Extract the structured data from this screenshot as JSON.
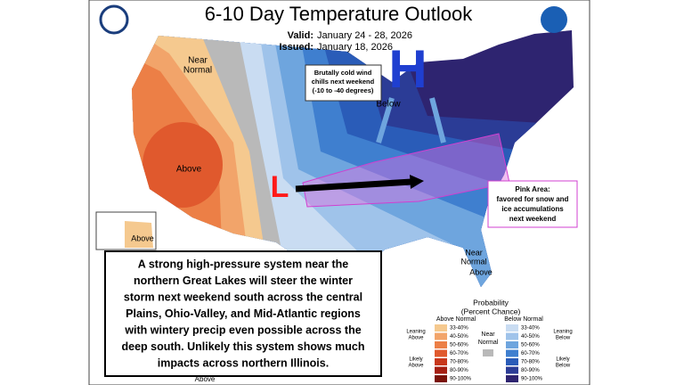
{
  "header": {
    "title": "6-10 Day Temperature Outlook",
    "valid_label": "Valid:",
    "valid": "January 24 - 28, 2026",
    "issued_label": "Issued:",
    "issued": "January 18, 2026"
  },
  "map_labels": {
    "near_normal_nw": [
      "Near",
      "Normal"
    ],
    "above_west": "Above",
    "below_ne": "Below",
    "high": "H",
    "low": "L",
    "above_alaska": "Above",
    "near_normal_fl": [
      "Near",
      "Normal"
    ],
    "above_fl": "Above",
    "above_bottom": "Above"
  },
  "callouts": {
    "wind_chill": [
      "Brutally cold wind",
      "chills next weekend",
      "(-10 to -40 degrees)"
    ],
    "pink_area": [
      "Pink Area:",
      "favored for snow and",
      "ice accumulations",
      "next weekend"
    ]
  },
  "summary": [
    "A strong high-pressure system near the",
    "northern Great Lakes will steer the winter",
    "storm next weekend south across the central",
    "Plains, Ohio-Valley, and Mid-Atlantic regions",
    "with wintery precip even possible across the",
    "deep south. Unlikely this system shows much",
    "impacts across northern Illinois."
  ],
  "legend": {
    "title": [
      "Probability",
      "(Percent Chance)"
    ],
    "above_header": "Above Normal",
    "below_header": "Below Normal",
    "near_label": [
      "Near",
      "Normal"
    ],
    "leaning_above": [
      "Leaning",
      "Above"
    ],
    "likely_above": [
      "Likely",
      "Above"
    ],
    "leaning_below": [
      "Leaning",
      "Below"
    ],
    "likely_below": [
      "Likely",
      "Below"
    ],
    "above": [
      {
        "range": "33-40%",
        "color": "#f5c98f"
      },
      {
        "range": "40-50%",
        "color": "#f2a46a"
      },
      {
        "range": "50-60%",
        "color": "#ec7f46"
      },
      {
        "range": "60-70%",
        "color": "#e0592d"
      },
      {
        "range": "70-80%",
        "color": "#c8381c"
      },
      {
        "range": "80-90%",
        "color": "#a51f12"
      },
      {
        "range": "90-100%",
        "color": "#7a1208"
      }
    ],
    "below": [
      {
        "range": "33-40%",
        "color": "#c9dcf2"
      },
      {
        "range": "40-50%",
        "color": "#9fc3ea"
      },
      {
        "range": "50-60%",
        "color": "#6ea5de"
      },
      {
        "range": "60-70%",
        "color": "#3f7fcf"
      },
      {
        "range": "70-80%",
        "color": "#2a5cb8"
      },
      {
        "range": "80-90%",
        "color": "#2b3c96"
      },
      {
        "range": "90-100%",
        "color": "#2e2470"
      }
    ]
  }
}
